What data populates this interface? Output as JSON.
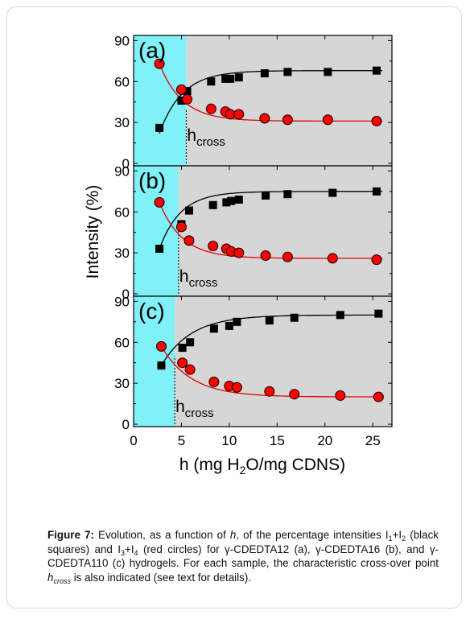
{
  "chart_data": {
    "type": "scatter",
    "ylabel": "Intensity (%)",
    "xlabel_parts": [
      "h (mg H",
      "2",
      "O/mg CDNS)"
    ],
    "xlim": [
      0,
      27
    ],
    "ylim": [
      0,
      92
    ],
    "xticks": [
      0,
      5,
      10,
      15,
      20,
      25
    ],
    "yticks": [
      0,
      30,
      60,
      90
    ],
    "marker_label": "h",
    "marker_label_sub": "cross",
    "colors": {
      "shade": "#7ff1f7",
      "background": "#d6d6d6",
      "black_series": "#000000",
      "red_series": "#ff0000",
      "red_line": "#e60000"
    },
    "panels": [
      {
        "label": "(a)",
        "h_cross": 5.5,
        "series": [
          {
            "color": "black",
            "marker": "square",
            "x": [
              2.7,
              5.0,
              5.6,
              8.1,
              9.6,
              10.1,
              11.0,
              13.7,
              16.1,
              20.3,
              25.4
            ],
            "y": [
              26,
              46,
              53,
              60,
              62,
              62,
              63,
              66,
              67,
              67,
              68
            ]
          },
          {
            "color": "red",
            "marker": "circle",
            "x": [
              2.7,
              5.0,
              5.6,
              8.1,
              9.6,
              10.1,
              11.0,
              13.7,
              16.1,
              20.3,
              25.4
            ],
            "y": [
              73,
              54,
              47,
              40,
              38,
              36,
              36,
              33,
              32,
              32,
              31
            ]
          }
        ],
        "fit_black": {
          "x0": 2.7,
          "amp": 68,
          "decay": 46,
          "rate": 0.42
        },
        "fit_red": {
          "x0": 2.7,
          "amp": 31,
          "decay": 42,
          "rate": 0.42
        }
      },
      {
        "label": "(b)",
        "h_cross": 4.7,
        "series": [
          {
            "color": "black",
            "marker": "square",
            "x": [
              2.7,
              5.0,
              5.8,
              8.3,
              9.7,
              10.2,
              11.0,
              13.8,
              16.1,
              20.8,
              25.4
            ],
            "y": [
              33,
              51,
              61,
              65,
              67,
              68,
              69,
              72,
              73,
              74,
              75
            ]
          },
          {
            "color": "red",
            "marker": "circle",
            "x": [
              2.7,
              5.0,
              5.8,
              8.3,
              9.7,
              10.2,
              11.0,
              13.8,
              16.1,
              20.8,
              25.4
            ],
            "y": [
              67,
              49,
              39,
              35,
              33,
              31,
              30,
              28,
              27,
              26,
              25
            ]
          }
        ],
        "fit_black": {
          "x0": 2.7,
          "amp": 75,
          "decay": 42,
          "rate": 0.45
        },
        "fit_red": {
          "x0": 2.7,
          "amp": 26,
          "decay": 41,
          "rate": 0.42
        }
      },
      {
        "label": "(c)",
        "h_cross": 4.3,
        "series": [
          {
            "color": "black",
            "marker": "square",
            "x": [
              2.9,
              5.1,
              5.9,
              8.4,
              10.0,
              10.8,
              14.2,
              16.8,
              21.6,
              25.6
            ],
            "y": [
              43,
              56,
              60,
              70,
              72,
              75,
              76,
              78,
              80,
              81
            ]
          },
          {
            "color": "red",
            "marker": "circle",
            "x": [
              2.9,
              5.1,
              5.9,
              8.4,
              10.0,
              10.8,
              14.2,
              16.8,
              21.6,
              25.6
            ],
            "y": [
              57,
              45,
              40,
              31,
              28,
              27,
              24,
              22,
              21,
              20
            ]
          }
        ],
        "fit_black": {
          "x0": 2.9,
          "amp": 80,
          "decay": 37,
          "rate": 0.32
        },
        "fit_red": {
          "x0": 2.9,
          "amp": 20,
          "decay": 37,
          "rate": 0.32
        }
      }
    ]
  },
  "caption": {
    "label": "Figure 7:",
    "t1": " Evolution, as a function of ",
    "h": "h",
    "t2": ", of the percentage intensities I",
    "s1": "1",
    "t3": "+I",
    "s2": "2",
    "t4": " (black squares) and I",
    "s3": "3",
    "t5": "+I",
    "s4": "4",
    "t6": " (red circles) for γ-CDEDTA12 (a), γ-CDEDTA16 (b), and γ-CDEDTA110 (c) hydrogels. For each sample, the characteristic cross-over point ",
    "hc": "h",
    "hc_sub": "cross",
    "t7": " is also indicated (see text for details)."
  }
}
